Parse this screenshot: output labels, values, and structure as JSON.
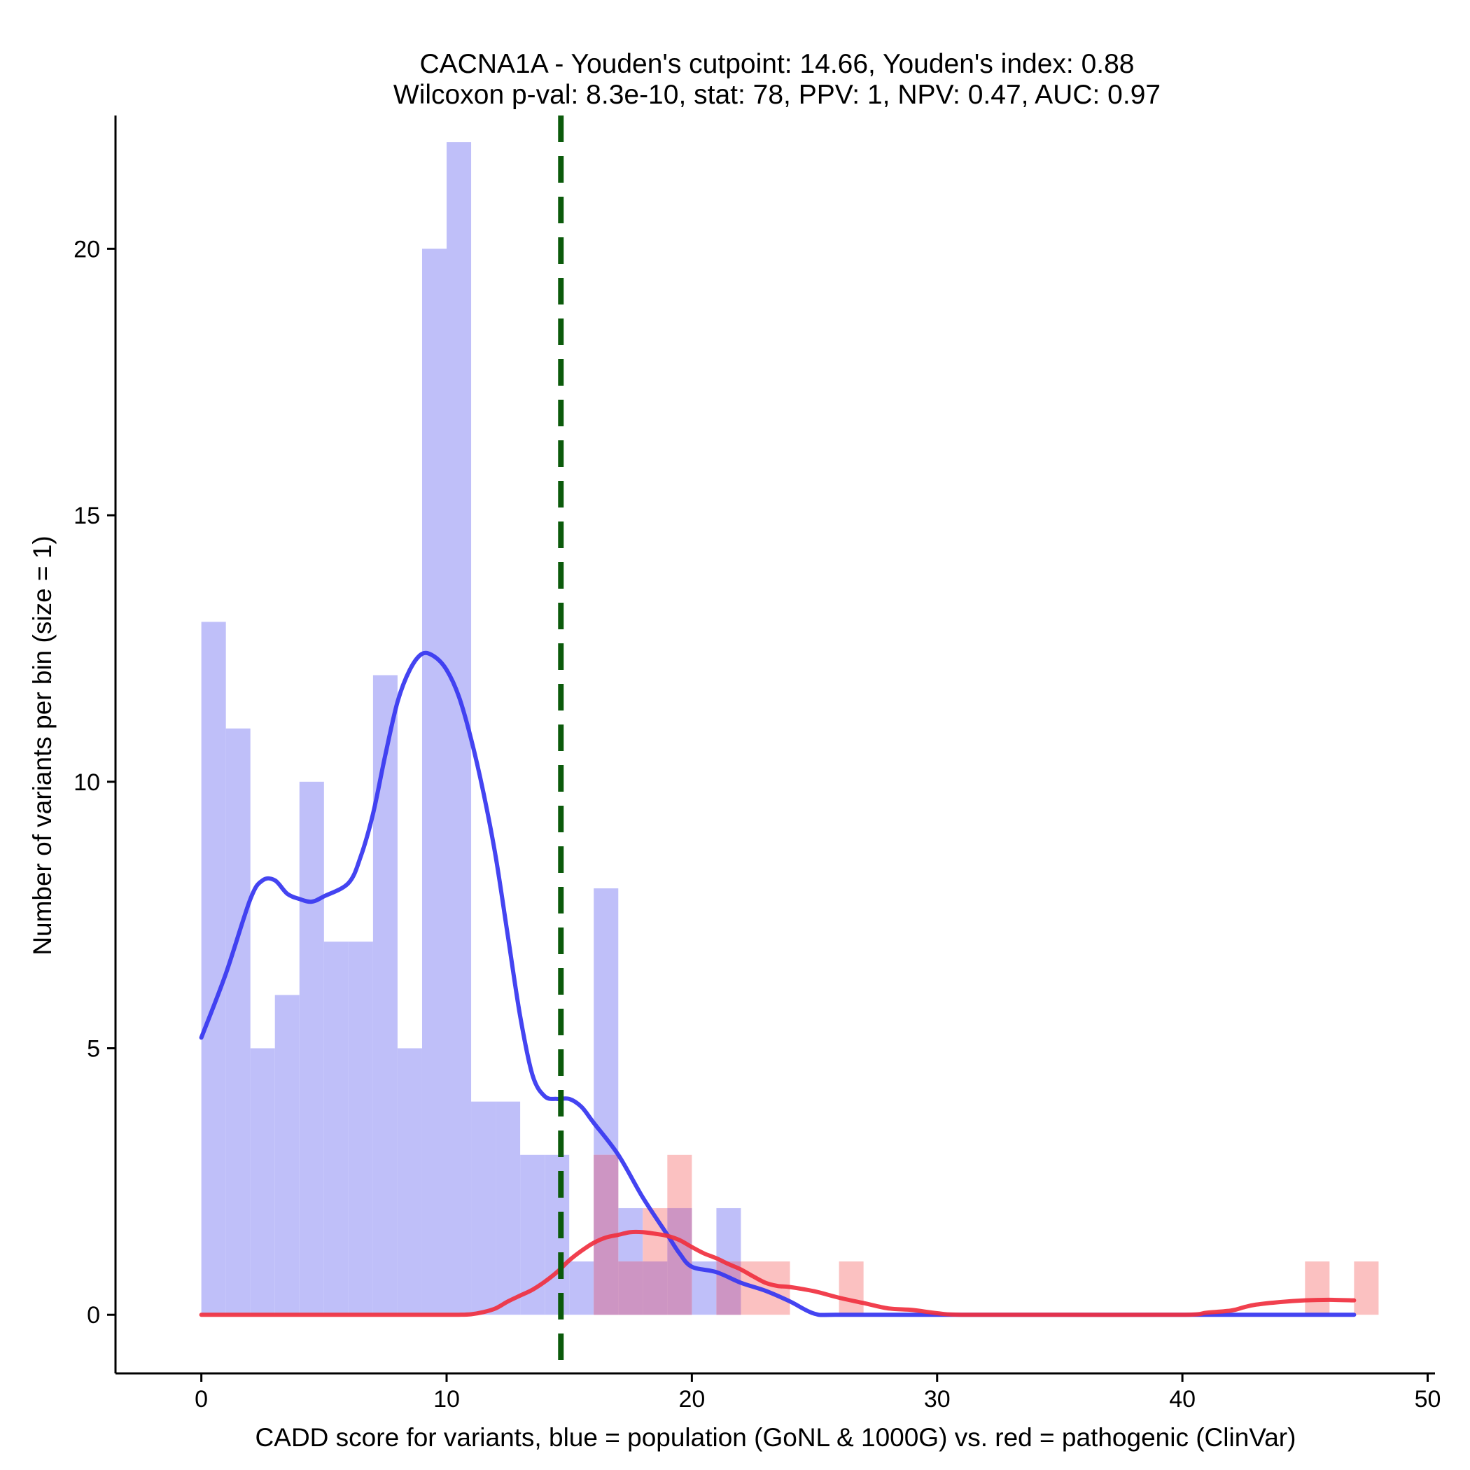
{
  "chart_data": {
    "type": "histogram",
    "title": "CACNA1A - Youden's cutpoint: 14.66, Youden's index: 0.88",
    "subtitle": "Wilcoxon p-val: 8.3e-10, stat: 78, PPV: 1, NPV: 0.47, AUC: 0.97",
    "xlabel": "CADD score for variants, blue = population (GoNL & 1000G) vs. red = pathogenic (ClinVar)",
    "ylabel": "Number of variants per bin (size = 1)",
    "xlim": [
      -3.5,
      50.3
    ],
    "ylim": [
      -1.1,
      22.5
    ],
    "xticks": [
      0,
      10,
      20,
      30,
      40,
      50
    ],
    "yticks": [
      0,
      5,
      10,
      15,
      20
    ],
    "bin_size": 1,
    "cutpoint": 14.66,
    "colors": {
      "population_bar": "#bfbff9",
      "pathogenic_bar": "#fbc1c1",
      "overlap_bar": "#cd95c3",
      "population_line": "#3a3af0",
      "pathogenic_line": "#f0303f",
      "cutpoint_line": "#0b5a0b"
    },
    "series": [
      {
        "name": "population (GoNL & 1000G)",
        "bins": [
          [
            0,
            13
          ],
          [
            1,
            11
          ],
          [
            2,
            5
          ],
          [
            3,
            6
          ],
          [
            4,
            10
          ],
          [
            5,
            7
          ],
          [
            6,
            7
          ],
          [
            7,
            12
          ],
          [
            8,
            5
          ],
          [
            9,
            20
          ],
          [
            10,
            22
          ],
          [
            11,
            4
          ],
          [
            12,
            4
          ],
          [
            13,
            3
          ],
          [
            14,
            3
          ],
          [
            15,
            1
          ],
          [
            16,
            8
          ],
          [
            17,
            2
          ],
          [
            18,
            1
          ],
          [
            19,
            2
          ],
          [
            20,
            1
          ],
          [
            21,
            2
          ]
        ],
        "density": [
          [
            0,
            5.2
          ],
          [
            1,
            6.4
          ],
          [
            2,
            7.8
          ],
          [
            2.5,
            8.15
          ],
          [
            3,
            8.15
          ],
          [
            3.5,
            7.9
          ],
          [
            4,
            7.8
          ],
          [
            4.5,
            7.75
          ],
          [
            5,
            7.85
          ],
          [
            6,
            8.1
          ],
          [
            6.5,
            8.6
          ],
          [
            7,
            9.4
          ],
          [
            7.5,
            10.5
          ],
          [
            8,
            11.5
          ],
          [
            8.5,
            12.1
          ],
          [
            9,
            12.4
          ],
          [
            9.5,
            12.35
          ],
          [
            10,
            12.1
          ],
          [
            10.5,
            11.6
          ],
          [
            11,
            10.8
          ],
          [
            11.5,
            9.8
          ],
          [
            12,
            8.6
          ],
          [
            12.5,
            7.1
          ],
          [
            13,
            5.6
          ],
          [
            13.5,
            4.5
          ],
          [
            14,
            4.1
          ],
          [
            14.5,
            4.05
          ],
          [
            15,
            4.05
          ],
          [
            15.5,
            3.9
          ],
          [
            16,
            3.6
          ],
          [
            17,
            3.0
          ],
          [
            18,
            2.2
          ],
          [
            19,
            1.5
          ],
          [
            19.5,
            1.15
          ],
          [
            20,
            0.9
          ],
          [
            21,
            0.8
          ],
          [
            22,
            0.6
          ],
          [
            23,
            0.45
          ],
          [
            24,
            0.25
          ],
          [
            25,
            0.02
          ],
          [
            26,
            0
          ],
          [
            30,
            0
          ],
          [
            40,
            0
          ],
          [
            47,
            0
          ]
        ]
      },
      {
        "name": "pathogenic (ClinVar)",
        "bins": [
          [
            16,
            3
          ],
          [
            17,
            1
          ],
          [
            18,
            2
          ],
          [
            19,
            3
          ],
          [
            21,
            1
          ],
          [
            22,
            1
          ],
          [
            23,
            1
          ],
          [
            26,
            1
          ],
          [
            45,
            1
          ],
          [
            47,
            1
          ]
        ],
        "density": [
          [
            0,
            0
          ],
          [
            5,
            0
          ],
          [
            10,
            0
          ],
          [
            10.5,
            0
          ],
          [
            11,
            0.01
          ],
          [
            11.5,
            0.05
          ],
          [
            12,
            0.12
          ],
          [
            12.5,
            0.25
          ],
          [
            13,
            0.36
          ],
          [
            13.5,
            0.47
          ],
          [
            14,
            0.62
          ],
          [
            14.5,
            0.8
          ],
          [
            15,
            1.02
          ],
          [
            15.5,
            1.2
          ],
          [
            16,
            1.35
          ],
          [
            16.5,
            1.45
          ],
          [
            17,
            1.5
          ],
          [
            17.5,
            1.55
          ],
          [
            18,
            1.55
          ],
          [
            18.5,
            1.52
          ],
          [
            19,
            1.48
          ],
          [
            19.5,
            1.4
          ],
          [
            20,
            1.27
          ],
          [
            20.5,
            1.15
          ],
          [
            21,
            1.06
          ],
          [
            21.5,
            0.95
          ],
          [
            22,
            0.85
          ],
          [
            22.5,
            0.72
          ],
          [
            23,
            0.6
          ],
          [
            23.5,
            0.54
          ],
          [
            24,
            0.52
          ],
          [
            25,
            0.44
          ],
          [
            26,
            0.32
          ],
          [
            27,
            0.22
          ],
          [
            28,
            0.12
          ],
          [
            29,
            0.09
          ],
          [
            30,
            0.03
          ],
          [
            31,
            0
          ],
          [
            35,
            0
          ],
          [
            40,
            0
          ],
          [
            41,
            0.04
          ],
          [
            42,
            0.08
          ],
          [
            42.5,
            0.14
          ],
          [
            43,
            0.19
          ],
          [
            44,
            0.24
          ],
          [
            45,
            0.27
          ],
          [
            46,
            0.28
          ],
          [
            47,
            0.27
          ]
        ]
      }
    ],
    "grid": false,
    "legend": "none"
  }
}
